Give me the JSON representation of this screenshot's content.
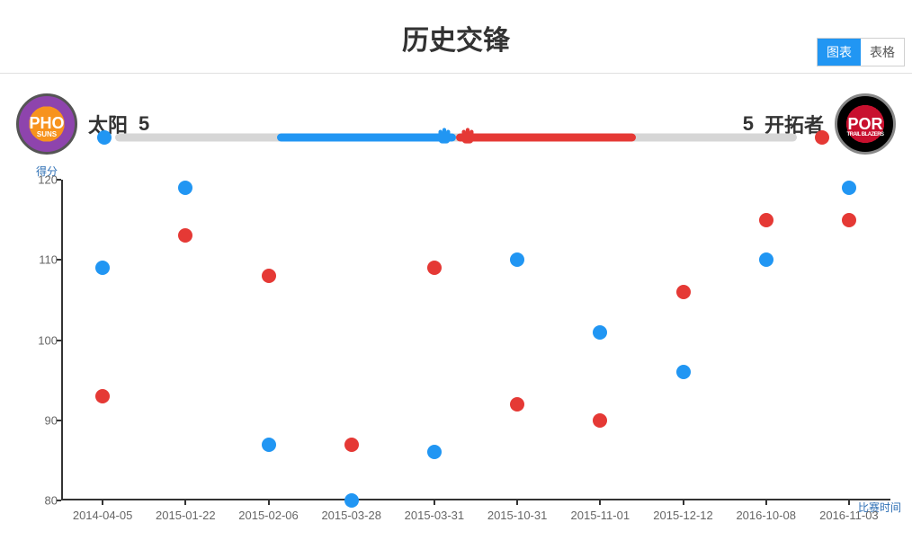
{
  "title": "历史交锋",
  "tabs": {
    "chart": "图表",
    "table": "表格",
    "active": "chart"
  },
  "teams": {
    "left": {
      "name": "太阳",
      "score": 5,
      "abbr": "PHO",
      "sub": "SUNS",
      "dot_color": "#2196f3"
    },
    "right": {
      "name": "开拓者",
      "score": 5,
      "abbr": "POR",
      "sub": "TRAIL BLAZERS",
      "dot_color": "#e53935"
    }
  },
  "winbar": {
    "track_color": "#d6d6d6",
    "blue_color": "#2196f3",
    "red_color": "#e53935",
    "blue_from_pct": 25,
    "blue_to_pct": 50,
    "red_from_pct": 50,
    "red_to_pct": 75
  },
  "chart": {
    "type": "scatter",
    "y_axis_label": "得分",
    "x_axis_label": "比赛时间",
    "ylim": [
      80,
      120
    ],
    "ytick_step": 10,
    "yticks": [
      80,
      90,
      100,
      110,
      120
    ],
    "categories": [
      "2014-04-05",
      "2015-01-22",
      "2015-02-06",
      "2015-03-28",
      "2015-03-31",
      "2015-10-31",
      "2015-11-01",
      "2015-12-12",
      "2016-10-08",
      "2016-11-03"
    ],
    "series": [
      {
        "name": "太阳",
        "color": "#2196f3",
        "values": [
          109,
          119,
          87,
          80,
          86,
          110,
          101,
          96,
          110,
          119
        ],
        "marker_size": 16
      },
      {
        "name": "开拓者",
        "color": "#e53935",
        "values": [
          93,
          113,
          108,
          87,
          109,
          92,
          90,
          106,
          115,
          115
        ],
        "marker_size": 16
      }
    ],
    "axis_color": "#333333",
    "tick_label_color": "#666666",
    "axis_label_color": "#2d6fb5",
    "background_color": "#ffffff",
    "label_fontsize": 12,
    "tick_fontsize": 13
  }
}
